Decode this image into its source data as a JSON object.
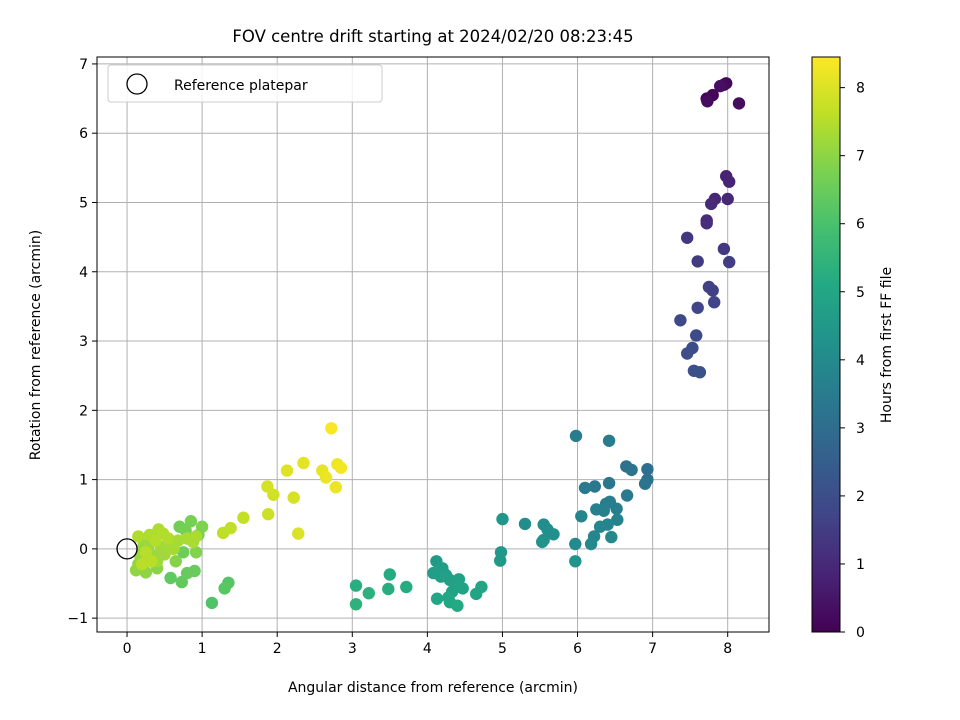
{
  "chart_data": {
    "type": "scatter",
    "title": "FOV centre drift starting at 2024/02/20 08:23:45",
    "xlabel": "Angular distance from reference (arcmin)",
    "ylabel": "Rotation from reference (arcmin)",
    "xlim": [
      -0.4,
      8.55
    ],
    "ylim": [
      -1.2,
      7.1
    ],
    "xticks": [
      0,
      1,
      2,
      3,
      4,
      5,
      6,
      7,
      8
    ],
    "yticks": [
      -1,
      0,
      1,
      2,
      3,
      4,
      5,
      6,
      7
    ],
    "grid": true,
    "legend": {
      "placement": "top-left",
      "entries": [
        "Reference platepar"
      ]
    },
    "reference_point": {
      "x": 0.0,
      "y": 0.0,
      "marker": "open-circle"
    },
    "colorbar": {
      "label": "Hours from first FF file",
      "range": [
        0,
        8.45
      ],
      "ticks": [
        0,
        1,
        2,
        3,
        4,
        5,
        6,
        7,
        8
      ],
      "colormap": "viridis"
    },
    "series": [
      {
        "points": [
          [
            7.72,
            6.5,
            0.05
          ],
          [
            7.8,
            6.55,
            0.1
          ],
          [
            7.95,
            6.7,
            0.15
          ],
          [
            7.98,
            6.72,
            0.2
          ],
          [
            7.73,
            6.46,
            0.25
          ],
          [
            8.15,
            6.43,
            0.3
          ],
          [
            7.9,
            6.68,
            0.35
          ],
          [
            7.98,
            5.38,
            0.8
          ],
          [
            8.02,
            5.3,
            0.85
          ],
          [
            7.83,
            5.05,
            0.9
          ],
          [
            8.0,
            5.05,
            0.95
          ],
          [
            7.78,
            4.98,
            1.0
          ],
          [
            7.72,
            4.74,
            1.05
          ],
          [
            7.72,
            4.7,
            1.1
          ],
          [
            7.46,
            4.49,
            1.35
          ],
          [
            7.95,
            4.33,
            1.4
          ],
          [
            7.6,
            4.15,
            1.45
          ],
          [
            8.02,
            4.14,
            1.5
          ],
          [
            7.75,
            3.78,
            1.6
          ],
          [
            7.8,
            3.73,
            1.65
          ],
          [
            7.82,
            3.56,
            1.7
          ],
          [
            7.6,
            3.48,
            1.75
          ],
          [
            7.37,
            3.3,
            1.85
          ],
          [
            7.58,
            3.08,
            1.9
          ],
          [
            7.53,
            2.9,
            1.95
          ],
          [
            7.46,
            2.82,
            2.0
          ],
          [
            7.55,
            2.57,
            2.05
          ],
          [
            7.63,
            2.55,
            2.1
          ],
          [
            6.93,
            1.15,
            3.05
          ],
          [
            6.93,
            1.0,
            3.1
          ],
          [
            6.65,
            1.19,
            3.15
          ],
          [
            6.72,
            1.14,
            3.2
          ],
          [
            6.9,
            0.94,
            3.25
          ],
          [
            6.42,
            0.95,
            3.3
          ],
          [
            6.23,
            0.9,
            3.35
          ],
          [
            6.1,
            0.88,
            3.4
          ],
          [
            6.66,
            0.77,
            3.45
          ],
          [
            5.98,
            1.63,
            3.48
          ],
          [
            6.42,
            1.56,
            3.52
          ],
          [
            6.43,
            0.68,
            3.55
          ],
          [
            6.38,
            0.65,
            3.58
          ],
          [
            6.52,
            0.58,
            3.62
          ],
          [
            6.25,
            0.57,
            3.66
          ],
          [
            6.35,
            0.55,
            3.7
          ],
          [
            6.53,
            0.42,
            3.74
          ],
          [
            6.05,
            0.47,
            3.78
          ],
          [
            6.4,
            0.35,
            3.82
          ],
          [
            6.3,
            0.32,
            3.85
          ],
          [
            6.22,
            0.18,
            3.88
          ],
          [
            6.45,
            0.17,
            3.92
          ],
          [
            6.18,
            0.07,
            3.96
          ],
          [
            5.97,
            0.07,
            4.0
          ],
          [
            5.3,
            0.36,
            4.05
          ],
          [
            5.55,
            0.35,
            4.1
          ],
          [
            5.6,
            0.28,
            4.15
          ],
          [
            5.68,
            0.21,
            4.2
          ],
          [
            5.55,
            0.13,
            4.25
          ],
          [
            5.53,
            0.1,
            4.3
          ],
          [
            5.97,
            -0.18,
            4.35
          ],
          [
            5.0,
            0.43,
            4.4
          ],
          [
            4.98,
            -0.05,
            4.48
          ],
          [
            4.97,
            -0.17,
            4.52
          ],
          [
            4.12,
            -0.18,
            4.6
          ],
          [
            4.2,
            -0.28,
            4.65
          ],
          [
            4.08,
            -0.35,
            4.7
          ],
          [
            4.18,
            -0.4,
            4.72
          ],
          [
            4.25,
            -0.38,
            4.75
          ],
          [
            4.3,
            -0.45,
            4.78
          ],
          [
            4.35,
            -0.48,
            4.8
          ],
          [
            4.42,
            -0.44,
            4.83
          ],
          [
            4.38,
            -0.55,
            4.86
          ],
          [
            4.47,
            -0.57,
            4.88
          ],
          [
            4.33,
            -0.62,
            4.9
          ],
          [
            4.72,
            -0.55,
            4.92
          ],
          [
            4.65,
            -0.65,
            4.95
          ],
          [
            4.28,
            -0.7,
            4.98
          ],
          [
            4.13,
            -0.72,
            5.0
          ],
          [
            4.3,
            -0.77,
            5.05
          ],
          [
            4.4,
            -0.82,
            5.1
          ],
          [
            3.5,
            -0.37,
            5.15
          ],
          [
            3.72,
            -0.55,
            5.2
          ],
          [
            3.48,
            -0.58,
            5.25
          ],
          [
            3.05,
            -0.53,
            5.3
          ],
          [
            3.22,
            -0.64,
            5.35
          ],
          [
            3.05,
            -0.8,
            5.4
          ],
          [
            1.13,
            -0.78,
            6.1
          ],
          [
            1.35,
            -0.49,
            6.2
          ],
          [
            1.3,
            -0.57,
            6.25
          ],
          [
            0.58,
            -0.42,
            6.35
          ],
          [
            0.73,
            -0.48,
            6.4
          ],
          [
            0.8,
            -0.35,
            6.45
          ],
          [
            0.9,
            -0.32,
            6.5
          ],
          [
            0.75,
            -0.05,
            6.55
          ],
          [
            0.7,
            0.32,
            6.6
          ],
          [
            0.78,
            0.27,
            6.65
          ],
          [
            0.85,
            0.4,
            6.7
          ],
          [
            0.95,
            0.2,
            6.75
          ],
          [
            1.0,
            0.32,
            6.8
          ],
          [
            0.92,
            -0.05,
            6.85
          ],
          [
            0.65,
            -0.18,
            6.9
          ],
          [
            0.4,
            -0.28,
            6.95
          ],
          [
            0.25,
            -0.34,
            7.0
          ],
          [
            0.12,
            -0.31,
            7.05
          ],
          [
            0.15,
            -0.22,
            7.08
          ],
          [
            0.18,
            -0.12,
            7.1
          ],
          [
            0.2,
            -0.05,
            7.12
          ],
          [
            0.22,
            0.05,
            7.14
          ],
          [
            0.28,
            0.0,
            7.16
          ],
          [
            0.3,
            0.1,
            7.18
          ],
          [
            0.35,
            -0.1,
            7.2
          ],
          [
            0.4,
            -0.18,
            7.22
          ],
          [
            0.45,
            0.03,
            7.24
          ],
          [
            0.5,
            -0.08,
            7.26
          ],
          [
            0.55,
            0.05,
            7.28
          ],
          [
            0.62,
            0.0,
            7.3
          ],
          [
            0.68,
            0.12,
            7.32
          ],
          [
            0.8,
            0.15,
            7.34
          ],
          [
            0.88,
            0.1,
            7.36
          ],
          [
            0.92,
            0.18,
            7.38
          ],
          [
            0.42,
            0.28,
            7.4
          ],
          [
            0.3,
            0.2,
            7.42
          ],
          [
            0.15,
            0.18,
            7.44
          ],
          [
            0.48,
            0.22,
            7.46
          ],
          [
            0.55,
            0.15,
            7.48
          ],
          [
            0.38,
            0.12,
            7.5
          ],
          [
            0.25,
            -0.05,
            7.52
          ],
          [
            0.2,
            -0.22,
            7.54
          ],
          [
            0.32,
            -0.18,
            7.56
          ],
          [
            1.28,
            0.23,
            7.6
          ],
          [
            1.38,
            0.3,
            7.65
          ],
          [
            1.55,
            0.45,
            7.7
          ],
          [
            1.88,
            0.5,
            7.8
          ],
          [
            1.95,
            0.78,
            7.85
          ],
          [
            1.87,
            0.9,
            7.9
          ],
          [
            2.22,
            0.74,
            7.95
          ],
          [
            2.28,
            0.22,
            8.0
          ],
          [
            2.13,
            1.13,
            8.05
          ],
          [
            2.35,
            1.24,
            8.1
          ],
          [
            2.6,
            1.13,
            8.15
          ],
          [
            2.65,
            1.03,
            8.2
          ],
          [
            2.78,
            0.89,
            8.22
          ],
          [
            2.8,
            1.22,
            8.25
          ],
          [
            2.85,
            1.17,
            8.3
          ],
          [
            2.72,
            1.74,
            8.4
          ]
        ]
      }
    ]
  }
}
